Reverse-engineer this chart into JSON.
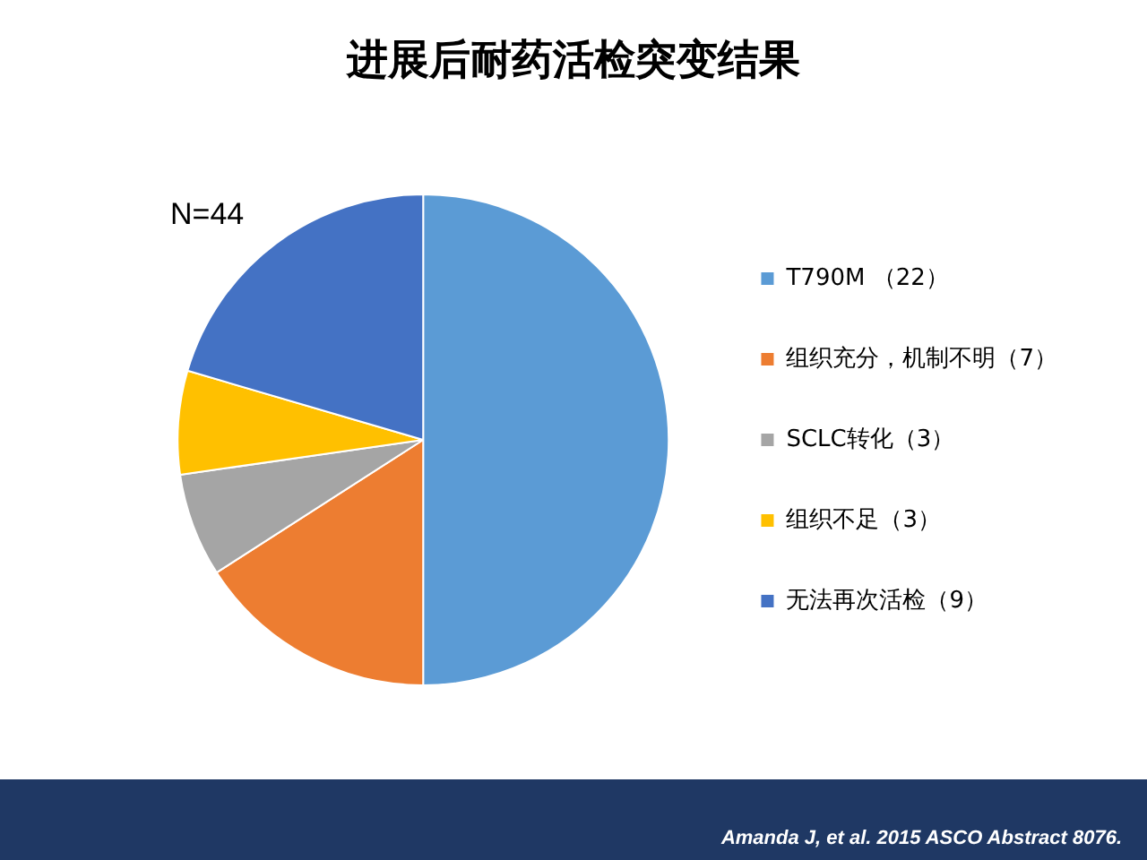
{
  "chart_data": {
    "type": "pie",
    "title": "进展后耐药活检突变结果",
    "categories": [
      "T790M （22）",
      "组织充分，机制不明（7）",
      "SCLC转化（3）",
      "组织不足（3）",
      "无法再次活检（9）"
    ],
    "values": [
      22,
      7,
      3,
      3,
      9
    ],
    "colors": [
      "#5b9bd5",
      "#ed7d31",
      "#a5a5a5",
      "#ffc000",
      "#4472c4"
    ],
    "legend": "right",
    "annotations": [
      "N=44",
      "Amanda J, et al. 2015 ASCO Abstract 8076."
    ]
  }
}
